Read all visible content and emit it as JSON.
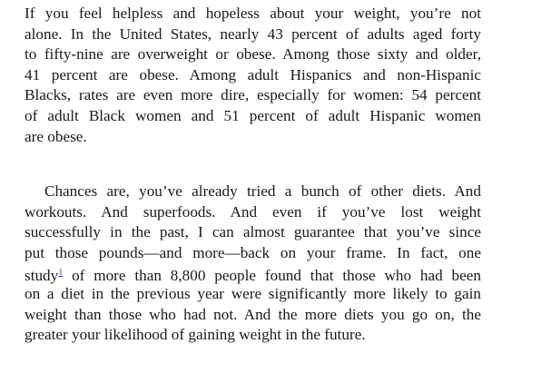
{
  "paragraphs": [
    {
      "lines": [
        "If you feel helpless and hopeless about your weight, you’re not",
        "alone. In the United States, nearly 43 percent of adults aged forty",
        "to fifty-nine are overweight or obese. Among those sixty and older,",
        "41 percent are obese. Among adult Hispanics and non-Hispanic",
        "Blacks, rates are even more dire, especially for women: 54 percent",
        "of adult Black women and 51 percent of adult Hispanic women",
        "are obese."
      ]
    },
    {
      "lines": [
        "Chances are, you’ve already tried a bunch of other diets. And",
        "workouts. And superfoods. And even if you’ve lost weight",
        "successfully in the past, I can almost guarantee that you’ve since",
        "put those pounds—and more—back on your frame. In fact, one",
        {
          "before": "study",
          "footnote": "1",
          "after": " of more than 8,800 people found that those who had been"
        },
        "on a diet in the previous year were significantly more likely to gain",
        "weight than those who had not. And the more diets you go on, the",
        "greater your likelihood of gaining weight in the future."
      ]
    }
  ]
}
